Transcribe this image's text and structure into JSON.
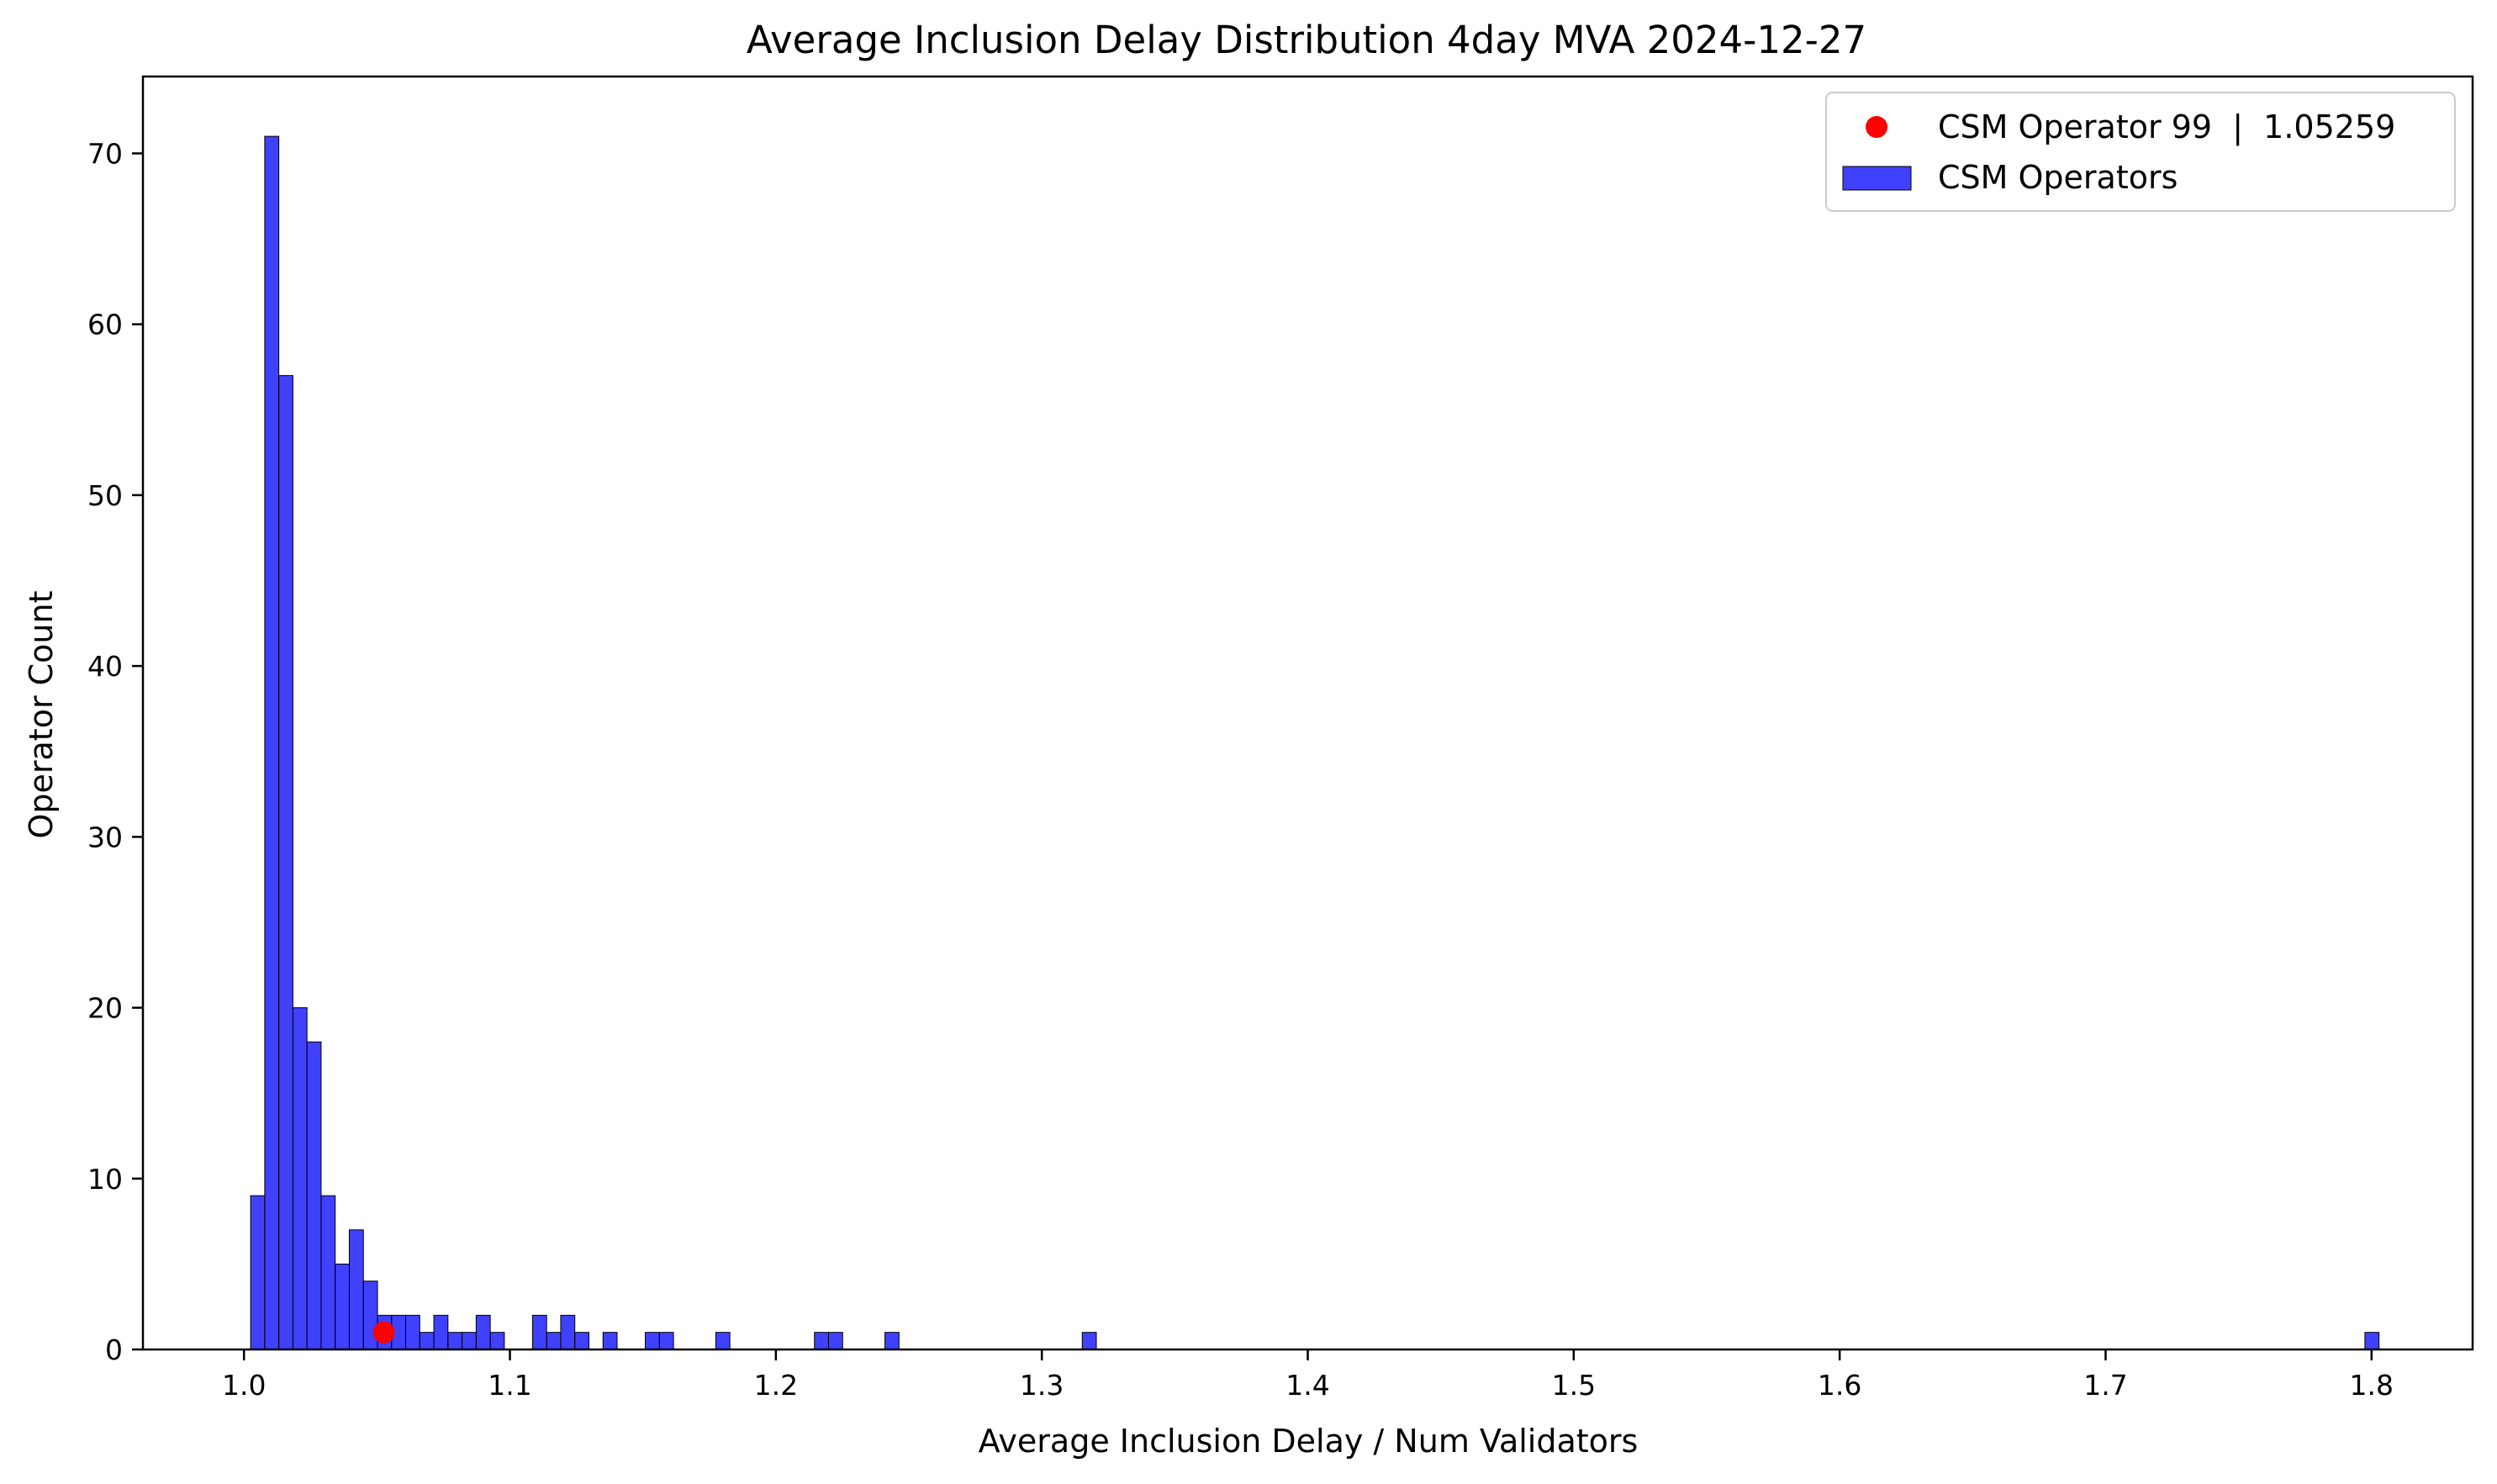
{
  "chart_data": {
    "type": "bar",
    "title": "Average Inclusion Delay Distribution 4day MVA 2024-12-27",
    "xlabel": "Average Inclusion Delay / Num Validators",
    "ylabel": "Operator Count",
    "xlim": [
      0.962,
      1.838
    ],
    "ylim": [
      0,
      74.5
    ],
    "grid": false,
    "legend_position": "top-right",
    "xticks": [
      1.0,
      1.1,
      1.2,
      1.3,
      1.4,
      1.5,
      1.6,
      1.7,
      1.8
    ],
    "xtick_labels": [
      "1.0",
      "1.1",
      "1.2",
      "1.3",
      "1.4",
      "1.5",
      "1.6",
      "1.7",
      "1.8"
    ],
    "yticks": [
      0,
      10,
      20,
      30,
      40,
      50,
      60,
      70
    ],
    "ytick_labels": [
      "0",
      "10",
      "20",
      "30",
      "40",
      "50",
      "60",
      "70"
    ],
    "bin_start": 1.0025,
    "bin_width": 0.0053,
    "series": [
      {
        "name": "CSM Operators",
        "color": "#0000ff",
        "counts": [
          9,
          71,
          57,
          20,
          18,
          9,
          5,
          7,
          4,
          2,
          2,
          2,
          1,
          2,
          1,
          1,
          2,
          1,
          0,
          0,
          2,
          1,
          2,
          1,
          0,
          1,
          0,
          0,
          1,
          1,
          0,
          0,
          0,
          1,
          0,
          0,
          0,
          0,
          0,
          0,
          1,
          1,
          0,
          0,
          0,
          1,
          0,
          0,
          0,
          0,
          0,
          0,
          0,
          0,
          0,
          0,
          0,
          0,
          0,
          1,
          0,
          0,
          0,
          0,
          0,
          0,
          0,
          0,
          0,
          0,
          0,
          0,
          0,
          0,
          0,
          0,
          0,
          0,
          0,
          0,
          0,
          0,
          0,
          0,
          0,
          0,
          0,
          0,
          0,
          0,
          0,
          0,
          0,
          0,
          0,
          0,
          0,
          0,
          0,
          0,
          0,
          0,
          0,
          0,
          0,
          0,
          0,
          0,
          0,
          0,
          0,
          0,
          0,
          0,
          0,
          0,
          0,
          0,
          0,
          0,
          0,
          0,
          0,
          0,
          0,
          0,
          0,
          0,
          0,
          0,
          0,
          0,
          0,
          0,
          0,
          0,
          0,
          0,
          0,
          0,
          0,
          0,
          0,
          0,
          0,
          0,
          0,
          0,
          0,
          0,
          1
        ]
      },
      {
        "name": "CSM Operator 99  |  1.05259",
        "type": "scatter",
        "color": "#ff0000",
        "x": [
          1.05259
        ],
        "y": [
          1
        ]
      }
    ],
    "legend": [
      {
        "label": "CSM Operator 99  |  1.05259",
        "marker": "dot",
        "color": "#ff0000"
      },
      {
        "label": "CSM Operators",
        "marker": "patch",
        "color": "#0000ff"
      }
    ]
  }
}
